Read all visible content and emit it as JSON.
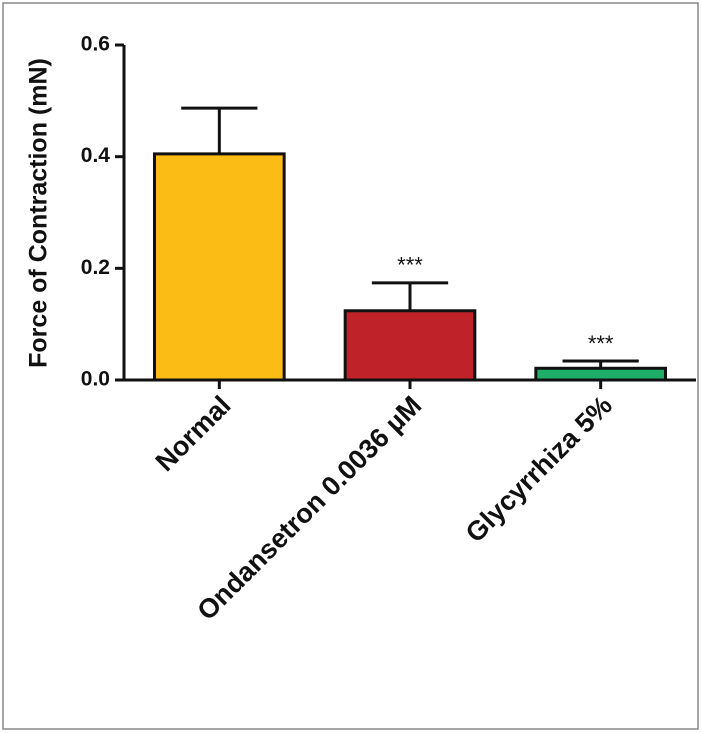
{
  "chart_data": {
    "type": "bar",
    "y_label": "Force of Contraction (mN)",
    "categories": [
      "Normal",
      "Ondansetron 0.0036 µM",
      "Glycyrrhiza 5%"
    ],
    "values": [
      0.405,
      0.124,
      0.021
    ],
    "errors": [
      0.082,
      0.05,
      0.013
    ],
    "colors": [
      "#fbbd15",
      "#c0222a",
      "#1fae6a"
    ],
    "significance": [
      null,
      "***",
      "***"
    ],
    "ylim": [
      0,
      0.6
    ],
    "yticks": [
      {
        "value": 0,
        "label": "0.0"
      },
      0.2,
      0.4,
      0.6
    ]
  }
}
